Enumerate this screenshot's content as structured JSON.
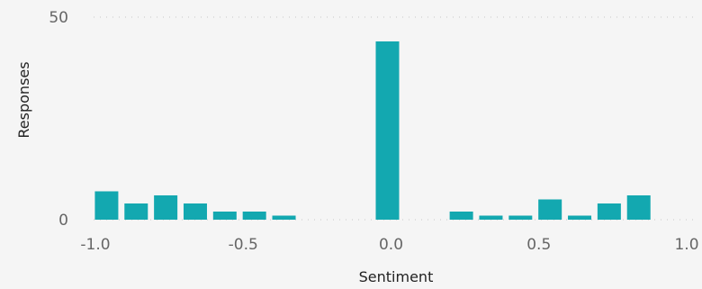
{
  "chart_data": {
    "type": "bar",
    "title": "",
    "xlabel": "Sentiment",
    "ylabel": "Responses",
    "xlim": [
      -1.0,
      1.0
    ],
    "ylim": [
      0,
      50
    ],
    "x_ticks": [
      "-1.0",
      "-0.5",
      "0.0",
      "0.5",
      "1.0"
    ],
    "y_ticks": [
      "0",
      "50"
    ],
    "grid": true,
    "bar_color": "#13a8b0",
    "x": [
      -0.95,
      -0.85,
      -0.75,
      -0.65,
      -0.55,
      -0.45,
      -0.35,
      0.0,
      0.25,
      0.35,
      0.45,
      0.55,
      0.65,
      0.75,
      0.85,
      0.95
    ],
    "values": [
      7,
      4,
      6,
      4,
      2,
      2,
      1,
      44,
      2,
      1,
      1,
      5,
      1,
      4,
      6,
      0
    ]
  }
}
